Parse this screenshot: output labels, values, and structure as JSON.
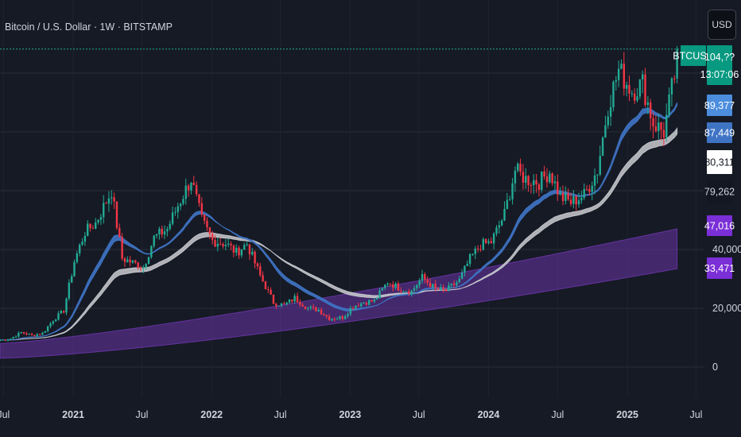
{
  "header": {
    "title": "Bitcoin / U.S. Dollar · 1W · BITSTAMP",
    "currency_button": "USD"
  },
  "colors": {
    "background": "#161a25",
    "grid": "#2a2e39",
    "up_candle": "#22ab94",
    "down_candle": "#f23645",
    "ema_fast_band": "#3f74c5",
    "ema_slow_band": "#c9cbd0",
    "long_band": "#6a35a8",
    "price_line": "#22ab94"
  },
  "badges": {
    "symbol": "BTCUSD",
    "price": "104,??",
    "countdown": "13:07:06",
    "ema_fast_upper": "89,377",
    "ema_fast_lower": "87,449",
    "ema_slow_upper": "80,311",
    "ema_slow_lower": "79,262",
    "long_upper": "47,016",
    "long_lower": "33,471"
  },
  "chart_data": {
    "type": "candlestick",
    "title": "Bitcoin / U.S. Dollar · 1W · BITSTAMP",
    "y_axis": {
      "min": 0,
      "max": 110000,
      "ticks": [
        0,
        20000,
        40000
      ],
      "tick_labels": [
        "0",
        "20,000",
        "40,000"
      ]
    },
    "x_axis": {
      "range": [
        "2020-06-22",
        "2025-07-21"
      ],
      "ticks": [
        {
          "date": "2020-07-01",
          "label": "Jul"
        },
        {
          "date": "2021-01-01",
          "label": "2021"
        },
        {
          "date": "2021-07-01",
          "label": "Jul"
        },
        {
          "date": "2022-01-01",
          "label": "2022"
        },
        {
          "date": "2022-07-01",
          "label": "Jul"
        },
        {
          "date": "2023-01-01",
          "label": "2023"
        },
        {
          "date": "2023-07-01",
          "label": "Jul"
        },
        {
          "date": "2024-01-01",
          "label": "2024"
        },
        {
          "date": "2024-07-01",
          "label": "Jul"
        },
        {
          "date": "2025-01-01",
          "label": "2025"
        },
        {
          "date": "2025-07-01",
          "label": "Jul"
        }
      ]
    },
    "grid": true,
    "close_series": {
      "dates": [
        "2020-06-22",
        "2020-07-20",
        "2020-08-17",
        "2020-09-14",
        "2020-10-12",
        "2020-11-09",
        "2020-12-07",
        "2021-01-04",
        "2021-02-01",
        "2021-03-01",
        "2021-04-12",
        "2021-05-10",
        "2021-06-07",
        "2021-07-05",
        "2021-08-02",
        "2021-09-06",
        "2021-10-04",
        "2021-11-08",
        "2021-12-06",
        "2022-01-03",
        "2022-02-07",
        "2022-03-07",
        "2022-04-04",
        "2022-05-09",
        "2022-06-13",
        "2022-07-11",
        "2022-08-08",
        "2022-09-12",
        "2022-10-10",
        "2022-11-07",
        "2022-12-12",
        "2023-01-09",
        "2023-02-06",
        "2023-03-06",
        "2023-04-10",
        "2023-05-08",
        "2023-06-12",
        "2023-07-10",
        "2023-08-14",
        "2023-09-11",
        "2023-10-16",
        "2023-11-13",
        "2023-12-11",
        "2024-01-08",
        "2024-02-12",
        "2024-03-11",
        "2024-04-08",
        "2024-05-13",
        "2024-06-10",
        "2024-07-08",
        "2024-08-05",
        "2024-09-09",
        "2024-10-14",
        "2024-11-11",
        "2024-12-09",
        "2025-01-13",
        "2025-02-10",
        "2025-03-10",
        "2025-04-07",
        "2025-05-12"
      ],
      "close": [
        9200,
        9700,
        11800,
        10800,
        11500,
        16000,
        19200,
        36000,
        46000,
        49000,
        60000,
        37000,
        35500,
        34000,
        44000,
        47000,
        55000,
        64000,
        50000,
        43000,
        42000,
        39000,
        42000,
        31000,
        22000,
        21000,
        23500,
        20000,
        19500,
        16500,
        16900,
        20800,
        22000,
        22500,
        29000,
        27000,
        25800,
        30500,
        26500,
        26000,
        29500,
        36800,
        41500,
        42500,
        52000,
        67000,
        64000,
        63000,
        66500,
        58000,
        56000,
        58500,
        67000,
        89000,
        101000,
        94000,
        96500,
        83000,
        80000,
        104000
      ]
    },
    "series": [
      {
        "name": "89,377",
        "type": "band-upper",
        "value": 89377
      },
      {
        "name": "87,449",
        "type": "band-lower",
        "value": 87449
      },
      {
        "name": "80,311",
        "type": "band-upper",
        "value": 80311
      },
      {
        "name": "79,262",
        "type": "band-lower",
        "value": 79262
      },
      {
        "name": "47,016",
        "type": "band-upper",
        "value": 47016
      },
      {
        "name": "33,471",
        "type": "band-lower",
        "value": 33471
      }
    ],
    "last_price_label": "BTCUSD",
    "countdown": "13:07:06"
  }
}
